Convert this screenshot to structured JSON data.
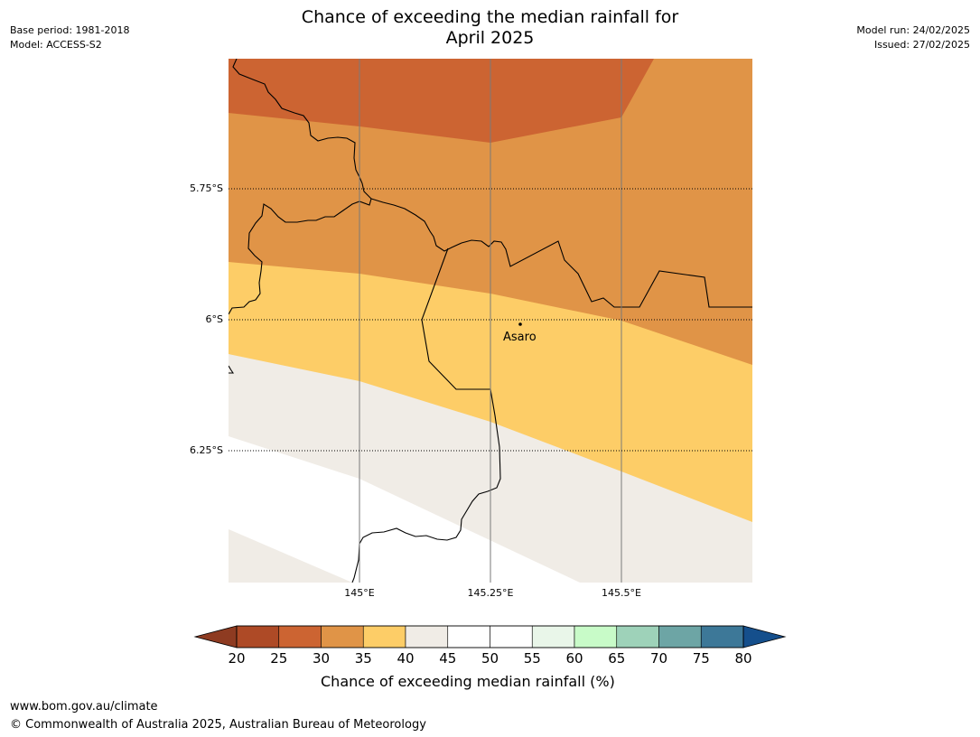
{
  "title_line1": "Chance of exceeding the median rainfall for",
  "title_line2": "April 2025",
  "base_period": "Base period: 1981-2018",
  "model": "Model: ACCESS-S2",
  "model_run": "Model run: 24/02/2025",
  "issued": "Issued: 27/02/2025",
  "map": {
    "lat_labels": [
      "5.75°S",
      "6°S",
      "6.25°S"
    ],
    "lon_labels": [
      "145°E",
      "145.25°E",
      "145.5°E"
    ],
    "place": "Asaro",
    "colors": {
      "band_20_25": "#ae4a26",
      "band_25_30": "#cc6432",
      "band_30_35": "#e09447",
      "band_35_40": "#fdcd67",
      "band_40_45": "#f0ece6",
      "band_45_55": "#ffffff"
    }
  },
  "colorbar": {
    "ticks": [
      "20",
      "25",
      "30",
      "35",
      "40",
      "45",
      "50",
      "55",
      "60",
      "65",
      "70",
      "75",
      "80"
    ],
    "colors": [
      "#ae4a26",
      "#cc6432",
      "#e09447",
      "#fdcd67",
      "#f0ece6",
      "#ffffff",
      "#ffffff",
      "#e9f6e9",
      "#c8fbc8",
      "#9ed2b9",
      "#6da5a5",
      "#3d7898"
    ],
    "under_color": "#8e3b21",
    "over_color": "#154f8c",
    "label": "Chance of exceeding median rainfall (%)"
  },
  "footer_url": "www.bom.gov.au/climate",
  "footer_copyright": "© Commonwealth of Australia 2025, Australian Bureau of Meteorology"
}
